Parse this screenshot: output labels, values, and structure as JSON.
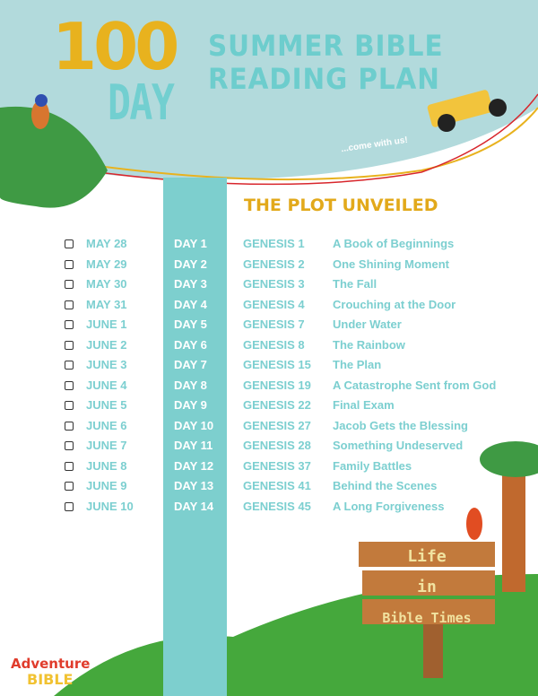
{
  "header": {
    "number": "100",
    "day_word": "DAY",
    "title_line1": "SUMMER BIBLE",
    "title_line2": "READING PLAN",
    "tagline": "...come with us!"
  },
  "section_title": "THE PLOT UNVEILED",
  "rows": [
    {
      "date": "MAY 28",
      "day": "DAY 1",
      "passage": "GENESIS 1",
      "title": "A Book of Beginnings"
    },
    {
      "date": "MAY 29",
      "day": "DAY 2",
      "passage": "GENESIS 2",
      "title": "One Shining Moment"
    },
    {
      "date": "MAY 30",
      "day": "DAY 3",
      "passage": "GENESIS 3",
      "title": "The Fall"
    },
    {
      "date": "MAY 31",
      "day": "DAY 4",
      "passage": "GENESIS 4",
      "title": "Crouching at the Door"
    },
    {
      "date": "JUNE 1",
      "day": "DAY 5",
      "passage": "GENESIS 7",
      "title": "Under Water"
    },
    {
      "date": "JUNE 2",
      "day": "DAY 6",
      "passage": "GENESIS 8",
      "title": "The Rainbow"
    },
    {
      "date": "JUNE 3",
      "day": "DAY 7",
      "passage": "GENESIS 15",
      "title": "The Plan"
    },
    {
      "date": "JUNE 4",
      "day": "DAY 8",
      "passage": "GENESIS 19",
      "title": "A Catastrophe Sent from God"
    },
    {
      "date": "JUNE 5",
      "day": "DAY 9",
      "passage": "GENESIS 22",
      "title": "Final Exam"
    },
    {
      "date": "JUNE 6",
      "day": "DAY 10",
      "passage": "GENESIS 27",
      "title": "Jacob Gets the Blessing"
    },
    {
      "date": "JUNE 7",
      "day": "DAY 11",
      "passage": "GENESIS 28",
      "title": "Something Undeserved"
    },
    {
      "date": "JUNE 8",
      "day": "DAY 12",
      "passage": "GENESIS 37",
      "title": "Family Battles"
    },
    {
      "date": "JUNE 9",
      "day": "DAY 13",
      "passage": "GENESIS 41",
      "title": "Behind the Scenes"
    },
    {
      "date": "JUNE 10",
      "day": "DAY 14",
      "passage": "GENESIS 45",
      "title": "A Long Forgiveness"
    }
  ],
  "sign": {
    "line1": "Life",
    "line2": "in",
    "line3": "Bible Times"
  },
  "logo": {
    "line1": "Adventure",
    "line2": "BIBLE"
  },
  "colors": {
    "header_bg": "#b2dadc",
    "teal": "#7dcfce",
    "gold": "#e2a91b",
    "green": "#45a83c"
  }
}
